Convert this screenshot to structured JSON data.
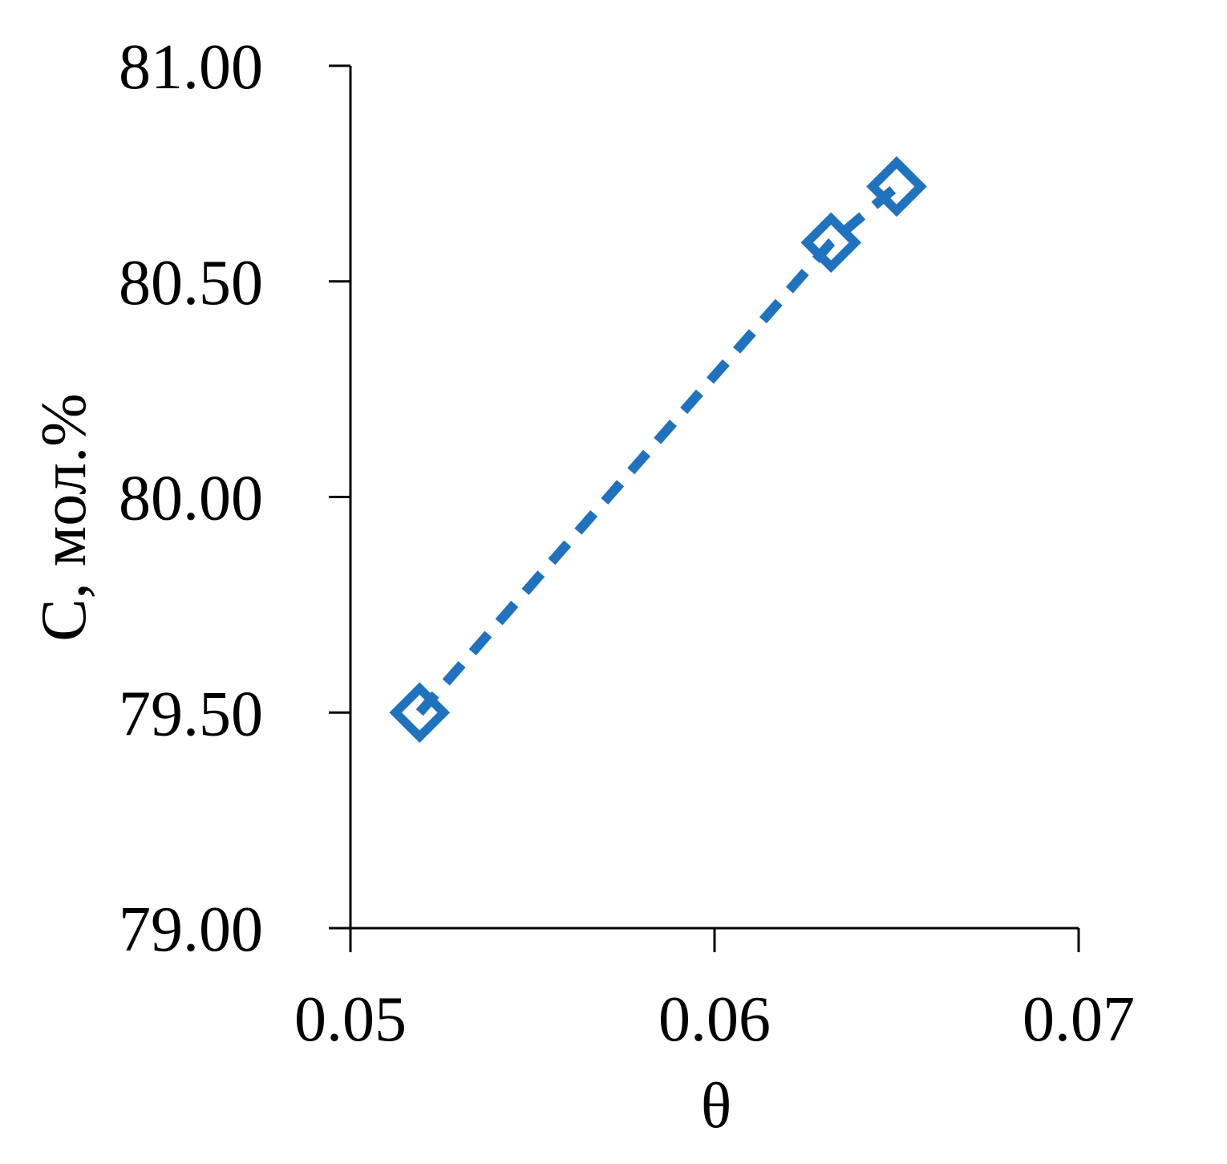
{
  "chart_data": {
    "type": "line",
    "xlabel": "θ",
    "ylabel": "С, мол.%",
    "xlim": [
      0.05,
      0.07
    ],
    "ylim": [
      79.0,
      81.0
    ],
    "xticks": [
      "0.05",
      "0.06",
      "0.07"
    ],
    "yticks": [
      "79.00",
      "79.50",
      "80.00",
      "80.50",
      "81.00"
    ],
    "grid": false,
    "legend": "none",
    "series": [
      {
        "x": [
          0.0519,
          0.0632,
          0.065
        ],
        "y": [
          79.5,
          80.59,
          80.72
        ],
        "color": "#1f72be",
        "line_style": "dashed",
        "marker": "hollow-diamond"
      }
    ]
  }
}
